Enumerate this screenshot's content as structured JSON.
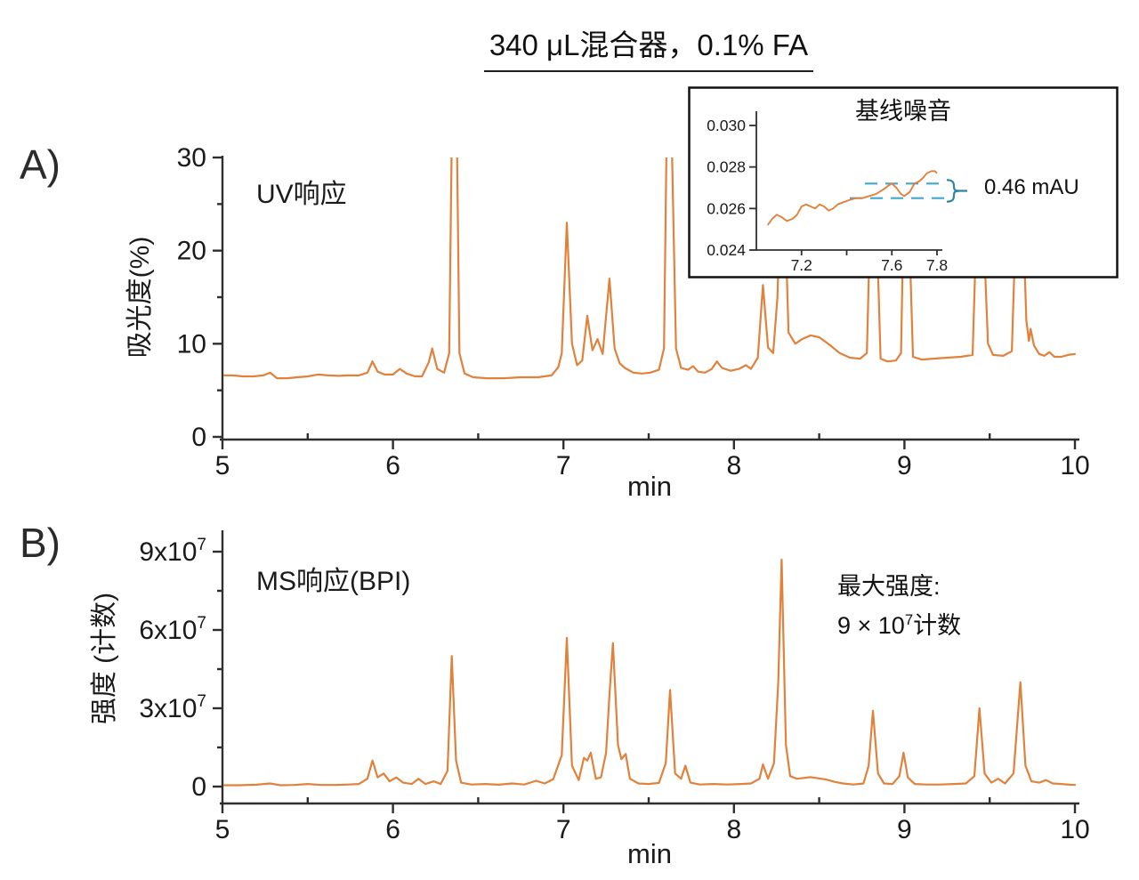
{
  "title": "340 μL混合器，0.1% FA",
  "colors": {
    "trace": "#E0813C",
    "axis": "#2F2F2F",
    "text": "#1A1A1A",
    "noise_dash": "#41A7CC",
    "noise_brace": "#2C85A5",
    "inset_border": "#111111"
  },
  "panel_a": {
    "label": "A)",
    "plot_label": "UV响应",
    "y_axis_label": "吸光度(%)",
    "x_axis_label": "min",
    "x_ticks": [
      {
        "v": 5,
        "label": "5"
      },
      {
        "v": 6,
        "label": "6"
      },
      {
        "v": 7,
        "label": "7"
      },
      {
        "v": 8,
        "label": "8"
      },
      {
        "v": 9,
        "label": "9"
      },
      {
        "v": 10,
        "label": "10"
      }
    ],
    "x_minor": [
      5.5,
      6.5,
      7.5,
      8.5,
      9.5
    ],
    "y_ticks": [
      {
        "v": 0,
        "label": "0"
      },
      {
        "v": 10,
        "label": "10"
      },
      {
        "v": 20,
        "label": "20"
      },
      {
        "v": 30,
        "label": "30"
      }
    ],
    "y_minor": [
      5,
      15,
      25
    ]
  },
  "panel_b": {
    "label": "B)",
    "plot_label": "MS响应(BPI)",
    "y_axis_label": "强度 (计数)",
    "x_axis_label": "min",
    "annotation": {
      "line1": "最大强度:",
      "line2_base": "9 × 10",
      "line2_sup": "7",
      "line2_suffix": "计数"
    },
    "x_ticks": [
      {
        "v": 5,
        "label": "5"
      },
      {
        "v": 6,
        "label": "6"
      },
      {
        "v": 7,
        "label": "7"
      },
      {
        "v": 8,
        "label": "8"
      },
      {
        "v": 9,
        "label": "9"
      },
      {
        "v": 10,
        "label": "10"
      }
    ],
    "x_minor": [
      5.5,
      6.5,
      7.5,
      8.5,
      9.5
    ],
    "y_ticks": [
      {
        "v": 0,
        "base": "0",
        "sup": ""
      },
      {
        "v": 3,
        "base": "3x10",
        "sup": "7"
      },
      {
        "v": 6,
        "base": "6x10",
        "sup": "7"
      },
      {
        "v": 9,
        "base": "9x10",
        "sup": "7"
      }
    ],
    "y_minor": [
      1.5,
      4.5,
      7.5
    ]
  },
  "inset": {
    "title": "基线噪音",
    "noise_label": "0.46 mAU",
    "x_ticks": [
      {
        "v": 7.2,
        "label": "7.2"
      },
      {
        "v": 7.4,
        "label": ""
      },
      {
        "v": 7.6,
        "label": "7.6"
      },
      {
        "v": 7.8,
        "label": "7.8"
      }
    ],
    "y_ticks": [
      {
        "v": 0.024,
        "label": "0.024"
      },
      {
        "v": 0.026,
        "label": "0.026"
      },
      {
        "v": 0.028,
        "label": "0.028"
      },
      {
        "v": 0.03,
        "label": "0.030"
      }
    ],
    "dash_lower": 0.0265,
    "dash_upper": 0.0272
  },
  "chart_data": [
    {
      "id": "uv_response",
      "type": "line",
      "title": "UV响应",
      "xlabel": "min",
      "ylabel": "吸光度(%)",
      "xlim": [
        5,
        10
      ],
      "ylim": [
        0,
        30
      ],
      "offscale_peaks_x": [
        6.36,
        7.62
      ],
      "peaks_hidden_by_inset_x": [
        8.28,
        8.81,
        9.01,
        9.44,
        9.68
      ],
      "points": [
        [
          5.0,
          6.6
        ],
        [
          5.06,
          6.6
        ],
        [
          5.12,
          6.5
        ],
        [
          5.18,
          6.5
        ],
        [
          5.24,
          6.6
        ],
        [
          5.28,
          6.9
        ],
        [
          5.32,
          6.3
        ],
        [
          5.38,
          6.3
        ],
        [
          5.44,
          6.4
        ],
        [
          5.5,
          6.5
        ],
        [
          5.56,
          6.7
        ],
        [
          5.62,
          6.6
        ],
        [
          5.68,
          6.55
        ],
        [
          5.74,
          6.6
        ],
        [
          5.8,
          6.6
        ],
        [
          5.85,
          6.9
        ],
        [
          5.88,
          8.1
        ],
        [
          5.91,
          7.0
        ],
        [
          5.95,
          6.7
        ],
        [
          6.0,
          6.7
        ],
        [
          6.04,
          7.3
        ],
        [
          6.08,
          6.8
        ],
        [
          6.13,
          6.5
        ],
        [
          6.17,
          6.5
        ],
        [
          6.21,
          8.0
        ],
        [
          6.23,
          9.5
        ],
        [
          6.26,
          7.3
        ],
        [
          6.3,
          6.9
        ],
        [
          6.33,
          9.0
        ],
        [
          6.345,
          32
        ],
        [
          6.375,
          32
        ],
        [
          6.39,
          9.0
        ],
        [
          6.42,
          6.8
        ],
        [
          6.47,
          6.4
        ],
        [
          6.55,
          6.3
        ],
        [
          6.65,
          6.3
        ],
        [
          6.75,
          6.4
        ],
        [
          6.85,
          6.4
        ],
        [
          6.93,
          6.6
        ],
        [
          6.97,
          7.5
        ],
        [
          6.99,
          9.0
        ],
        [
          7.02,
          23.0
        ],
        [
          7.05,
          10.0
        ],
        [
          7.08,
          7.7
        ],
        [
          7.11,
          8.2
        ],
        [
          7.14,
          13.0
        ],
        [
          7.17,
          9.3
        ],
        [
          7.2,
          10.5
        ],
        [
          7.23,
          8.9
        ],
        [
          7.27,
          17.0
        ],
        [
          7.3,
          9.5
        ],
        [
          7.33,
          7.9
        ],
        [
          7.36,
          7.4
        ],
        [
          7.41,
          6.9
        ],
        [
          7.46,
          6.8
        ],
        [
          7.51,
          6.9
        ],
        [
          7.56,
          7.2
        ],
        [
          7.59,
          9.5
        ],
        [
          7.605,
          32
        ],
        [
          7.635,
          32
        ],
        [
          7.66,
          9.5
        ],
        [
          7.69,
          7.4
        ],
        [
          7.73,
          7.2
        ],
        [
          7.76,
          7.6
        ],
        [
          7.79,
          7.0
        ],
        [
          7.83,
          6.9
        ],
        [
          7.87,
          7.3
        ],
        [
          7.9,
          8.1
        ],
        [
          7.93,
          7.4
        ],
        [
          7.98,
          7.1
        ],
        [
          8.03,
          7.3
        ],
        [
          8.07,
          7.7
        ],
        [
          8.1,
          7.3
        ],
        [
          8.14,
          8.5
        ],
        [
          8.17,
          16.3
        ],
        [
          8.2,
          9.6
        ],
        [
          8.23,
          9.0
        ],
        [
          8.255,
          15.0
        ],
        [
          8.27,
          24
        ],
        [
          8.3,
          24
        ],
        [
          8.32,
          11.2
        ],
        [
          8.36,
          10.0
        ],
        [
          8.4,
          10.5
        ],
        [
          8.45,
          10.9
        ],
        [
          8.5,
          10.7
        ],
        [
          8.56,
          9.9
        ],
        [
          8.62,
          9.0
        ],
        [
          8.68,
          8.5
        ],
        [
          8.74,
          8.4
        ],
        [
          8.78,
          9.0
        ],
        [
          8.8,
          24
        ],
        [
          8.835,
          24
        ],
        [
          8.86,
          8.4
        ],
        [
          8.9,
          8.1
        ],
        [
          8.95,
          8.2
        ],
        [
          8.98,
          9.0
        ],
        [
          8.995,
          24
        ],
        [
          9.025,
          24
        ],
        [
          9.05,
          8.6
        ],
        [
          9.1,
          8.3
        ],
        [
          9.17,
          8.4
        ],
        [
          9.25,
          8.5
        ],
        [
          9.33,
          8.6
        ],
        [
          9.4,
          8.8
        ],
        [
          9.425,
          24
        ],
        [
          9.46,
          24
        ],
        [
          9.49,
          10.0
        ],
        [
          9.52,
          8.8
        ],
        [
          9.58,
          8.7
        ],
        [
          9.63,
          9.2
        ],
        [
          9.655,
          24
        ],
        [
          9.695,
          24
        ],
        [
          9.715,
          12.5
        ],
        [
          9.73,
          10.3
        ],
        [
          9.74,
          11.6
        ],
        [
          9.76,
          9.8
        ],
        [
          9.79,
          8.9
        ],
        [
          9.82,
          8.7
        ],
        [
          9.85,
          9.1
        ],
        [
          9.88,
          8.6
        ],
        [
          9.92,
          8.6
        ],
        [
          9.96,
          8.8
        ],
        [
          10.0,
          8.9
        ]
      ]
    },
    {
      "id": "uv_baseline_noise_inset",
      "type": "line",
      "title": "基线噪音",
      "xlim": [
        7.0,
        7.8
      ],
      "ylim": [
        0.024,
        0.03
      ],
      "noise_value_label": "0.46 mAU",
      "noise_band": [
        0.0265,
        0.0272
      ],
      "points": [
        [
          7.05,
          0.0252
        ],
        [
          7.07,
          0.0255
        ],
        [
          7.09,
          0.0257
        ],
        [
          7.11,
          0.0256
        ],
        [
          7.135,
          0.0254
        ],
        [
          7.16,
          0.0255
        ],
        [
          7.18,
          0.0257
        ],
        [
          7.2,
          0.0261
        ],
        [
          7.22,
          0.0262
        ],
        [
          7.24,
          0.0261
        ],
        [
          7.26,
          0.026
        ],
        [
          7.28,
          0.0262
        ],
        [
          7.3,
          0.0261
        ],
        [
          7.32,
          0.0259
        ],
        [
          7.34,
          0.026
        ],
        [
          7.36,
          0.0262
        ],
        [
          7.385,
          0.0263
        ],
        [
          7.41,
          0.0264
        ],
        [
          7.44,
          0.0265
        ],
        [
          7.47,
          0.0265
        ],
        [
          7.5,
          0.0266
        ],
        [
          7.53,
          0.0267
        ],
        [
          7.56,
          0.0269
        ],
        [
          7.585,
          0.0271
        ],
        [
          7.6,
          0.0272
        ],
        [
          7.62,
          0.027
        ],
        [
          7.64,
          0.0267
        ],
        [
          7.655,
          0.0266
        ],
        [
          7.68,
          0.0268
        ],
        [
          7.7,
          0.0272
        ],
        [
          7.72,
          0.0273
        ],
        [
          7.74,
          0.0275
        ],
        [
          7.755,
          0.0277
        ],
        [
          7.775,
          0.0278
        ],
        [
          7.79,
          0.0278
        ],
        [
          7.8,
          0.0277
        ]
      ]
    },
    {
      "id": "ms_response_bpi",
      "type": "line",
      "title": "MS响应(BPI)",
      "xlabel": "min",
      "ylabel": "强度 (计数)",
      "y_unit": "1e7 counts",
      "xlim": [
        5,
        10
      ],
      "ylim": [
        0,
        9
      ],
      "max_intensity_label": "9 × 10⁷计数",
      "points": [
        [
          5.0,
          0.05
        ],
        [
          5.1,
          0.05
        ],
        [
          5.2,
          0.07
        ],
        [
          5.28,
          0.12
        ],
        [
          5.34,
          0.05
        ],
        [
          5.42,
          0.06
        ],
        [
          5.5,
          0.1
        ],
        [
          5.58,
          0.06
        ],
        [
          5.66,
          0.06
        ],
        [
          5.74,
          0.08
        ],
        [
          5.8,
          0.1
        ],
        [
          5.85,
          0.3
        ],
        [
          5.88,
          1.0
        ],
        [
          5.91,
          0.35
        ],
        [
          5.945,
          0.5
        ],
        [
          5.98,
          0.2
        ],
        [
          6.02,
          0.35
        ],
        [
          6.06,
          0.15
        ],
        [
          6.11,
          0.1
        ],
        [
          6.15,
          0.3
        ],
        [
          6.19,
          0.1
        ],
        [
          6.24,
          0.2
        ],
        [
          6.28,
          0.1
        ],
        [
          6.32,
          0.6
        ],
        [
          6.345,
          5.0
        ],
        [
          6.37,
          1.0
        ],
        [
          6.4,
          0.15
        ],
        [
          6.46,
          0.08
        ],
        [
          6.54,
          0.1
        ],
        [
          6.62,
          0.07
        ],
        [
          6.7,
          0.12
        ],
        [
          6.77,
          0.08
        ],
        [
          6.84,
          0.22
        ],
        [
          6.89,
          0.12
        ],
        [
          6.94,
          0.28
        ],
        [
          6.99,
          1.2
        ],
        [
          7.02,
          5.7
        ],
        [
          7.05,
          0.8
        ],
        [
          7.09,
          0.25
        ],
        [
          7.12,
          1.1
        ],
        [
          7.14,
          1.0
        ],
        [
          7.16,
          1.3
        ],
        [
          7.19,
          0.3
        ],
        [
          7.22,
          0.35
        ],
        [
          7.25,
          1.3
        ],
        [
          7.27,
          3.5
        ],
        [
          7.29,
          5.5
        ],
        [
          7.32,
          1.6
        ],
        [
          7.34,
          1.05
        ],
        [
          7.365,
          1.25
        ],
        [
          7.39,
          0.3
        ],
        [
          7.44,
          0.12
        ],
        [
          7.5,
          0.1
        ],
        [
          7.56,
          0.14
        ],
        [
          7.6,
          0.9
        ],
        [
          7.625,
          3.7
        ],
        [
          7.655,
          0.5
        ],
        [
          7.69,
          0.3
        ],
        [
          7.715,
          0.8
        ],
        [
          7.745,
          0.15
        ],
        [
          7.8,
          0.08
        ],
        [
          7.88,
          0.1
        ],
        [
          7.96,
          0.08
        ],
        [
          8.04,
          0.1
        ],
        [
          8.1,
          0.12
        ],
        [
          8.15,
          0.3
        ],
        [
          8.17,
          0.85
        ],
        [
          8.2,
          0.3
        ],
        [
          8.235,
          0.9
        ],
        [
          8.26,
          4.0
        ],
        [
          8.28,
          8.7
        ],
        [
          8.305,
          1.6
        ],
        [
          8.33,
          0.4
        ],
        [
          8.37,
          0.3
        ],
        [
          8.41,
          0.33
        ],
        [
          8.45,
          0.36
        ],
        [
          8.49,
          0.32
        ],
        [
          8.54,
          0.27
        ],
        [
          8.59,
          0.18
        ],
        [
          8.64,
          0.12
        ],
        [
          8.7,
          0.08
        ],
        [
          8.76,
          0.12
        ],
        [
          8.79,
          0.8
        ],
        [
          8.815,
          2.9
        ],
        [
          8.845,
          0.5
        ],
        [
          8.88,
          0.12
        ],
        [
          8.93,
          0.1
        ],
        [
          8.97,
          0.4
        ],
        [
          8.995,
          1.3
        ],
        [
          9.02,
          0.35
        ],
        [
          9.06,
          0.1
        ],
        [
          9.13,
          0.08
        ],
        [
          9.21,
          0.08
        ],
        [
          9.29,
          0.1
        ],
        [
          9.36,
          0.12
        ],
        [
          9.41,
          0.4
        ],
        [
          9.44,
          3.0
        ],
        [
          9.47,
          0.5
        ],
        [
          9.51,
          0.15
        ],
        [
          9.55,
          0.3
        ],
        [
          9.59,
          0.12
        ],
        [
          9.64,
          0.5
        ],
        [
          9.68,
          4.0
        ],
        [
          9.71,
          0.8
        ],
        [
          9.745,
          0.2
        ],
        [
          9.79,
          0.15
        ],
        [
          9.83,
          0.25
        ],
        [
          9.87,
          0.12
        ],
        [
          9.92,
          0.1
        ],
        [
          9.97,
          0.07
        ],
        [
          10.0,
          0.06
        ]
      ]
    }
  ]
}
